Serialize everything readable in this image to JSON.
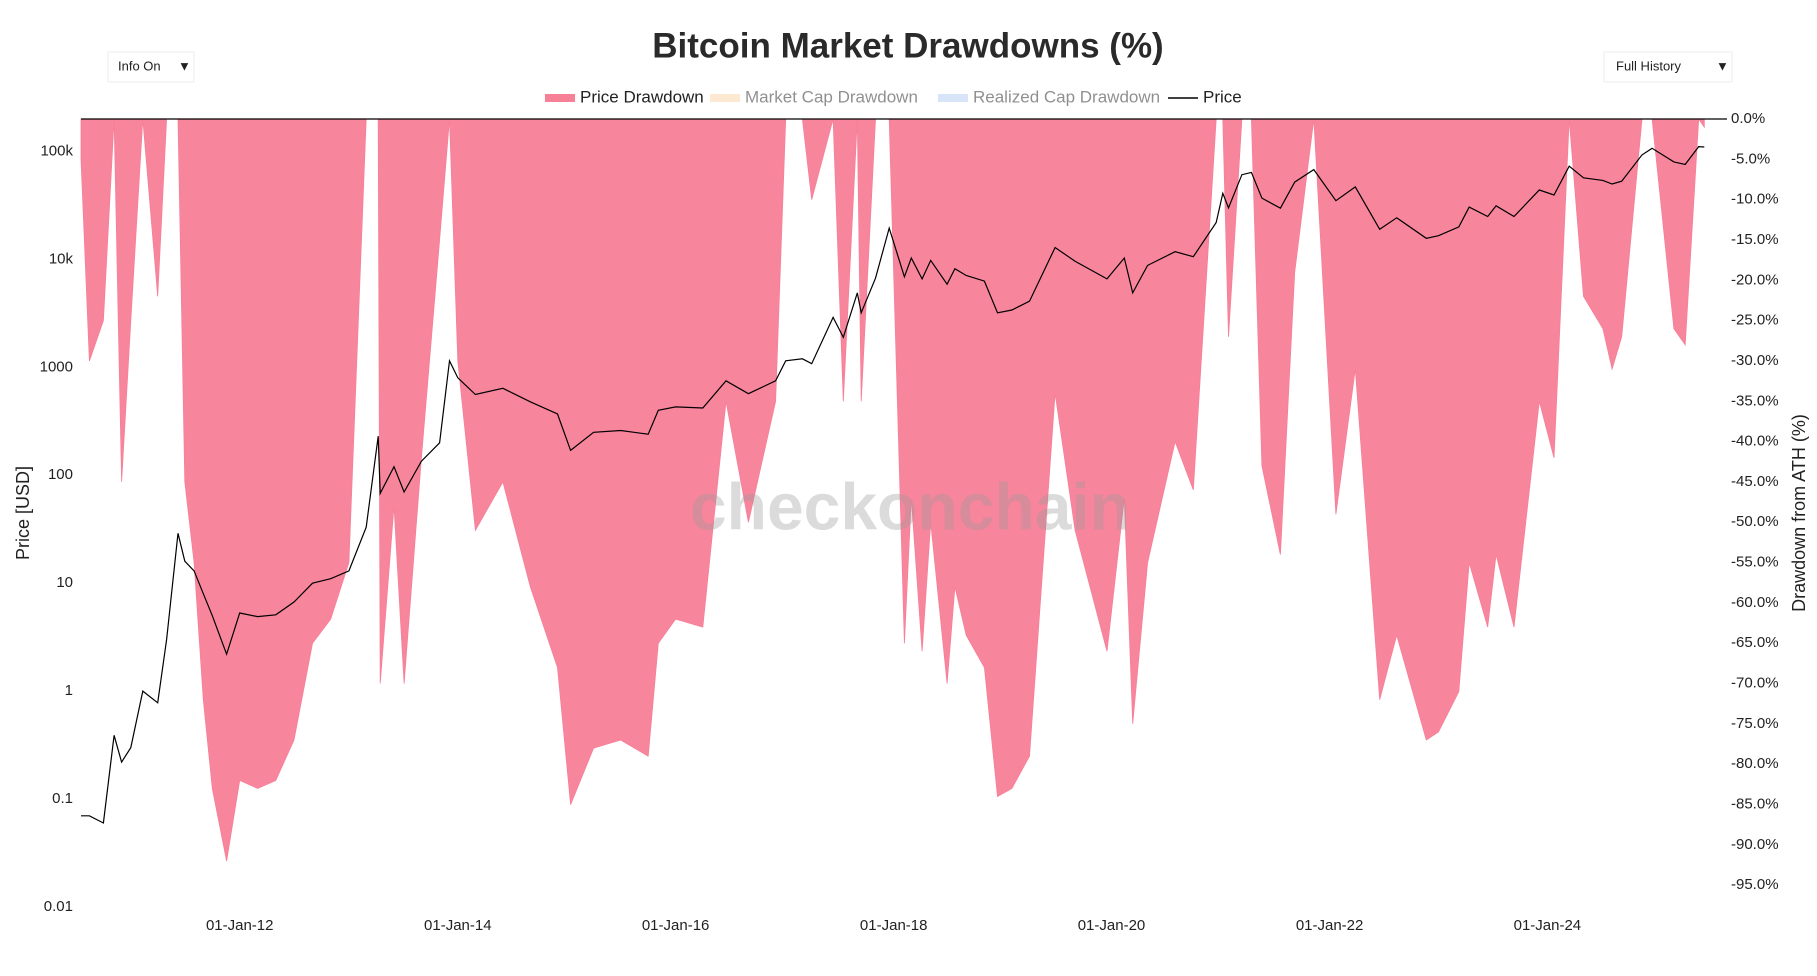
{
  "chart_data": {
    "type": "area",
    "title": "Bitcoin Market Drawdowns (%)",
    "controls": [
      {
        "label": "Info On",
        "arrow": "▼"
      },
      {
        "label": "Full History",
        "arrow": "▼"
      }
    ],
    "watermark": "checkonchain",
    "ylabel": "Price [USD]",
    "y2label": "Drawdown from ATH (%)",
    "yscale": "log",
    "xlim": [
      "2010-07-18",
      "2025-08-25"
    ],
    "xticks": [
      {
        "value": "2012-01-01",
        "label": "01-Jan-12"
      },
      {
        "value": "2014-01-01",
        "label": "01-Jan-14"
      },
      {
        "value": "2016-01-01",
        "label": "01-Jan-16"
      },
      {
        "value": "2018-01-01",
        "label": "01-Jan-18"
      },
      {
        "value": "2020-01-01",
        "label": "01-Jan-20"
      },
      {
        "value": "2022-01-01",
        "label": "01-Jan-22"
      },
      {
        "value": "2024-01-01",
        "label": "01-Jan-24"
      }
    ],
    "ylim": [
      0.01,
      200000
    ],
    "yticks": [
      0.01,
      0.1,
      1,
      10,
      100,
      1000,
      {
        "value": 10000,
        "label": "10k"
      },
      {
        "value": 100000,
        "label": "100k"
      }
    ],
    "y2lim": [
      -97.7,
      0
    ],
    "y2ticks": [
      {
        "value": 0,
        "label": "0.0%"
      },
      {
        "value": -5,
        "label": "-5.0%"
      },
      {
        "value": -10,
        "label": "-10.0%"
      },
      {
        "value": -15,
        "label": "-15.0%"
      },
      {
        "value": -20,
        "label": "-20.0%"
      },
      {
        "value": -25,
        "label": "-25.0%"
      },
      {
        "value": -30,
        "label": "-30.0%"
      },
      {
        "value": -35,
        "label": "-35.0%"
      },
      {
        "value": -40,
        "label": "-40.0%"
      },
      {
        "value": -45,
        "label": "-45.0%"
      },
      {
        "value": -50,
        "label": "-50.0%"
      },
      {
        "value": -55,
        "label": "-55.0%"
      },
      {
        "value": -60,
        "label": "-60.0%"
      },
      {
        "value": -65,
        "label": "-65.0%"
      },
      {
        "value": -70,
        "label": "-70.0%"
      },
      {
        "value": -75,
        "label": "-75.0%"
      },
      {
        "value": -80,
        "label": "-80.0%"
      },
      {
        "value": -85,
        "label": "-85.0%"
      },
      {
        "value": -90,
        "label": "-90.0%"
      },
      {
        "value": -95,
        "label": "-95.0%"
      }
    ],
    "x": [
      "2010-07-18",
      "2010-08-15",
      "2010-10-01",
      "2010-11-06",
      "2010-12-01",
      "2011-01-01",
      "2011-02-10",
      "2011-04-01",
      "2011-05-01",
      "2011-06-08",
      "2011-07-01",
      "2011-08-01",
      "2011-09-01",
      "2011-10-01",
      "2011-11-18",
      "2012-01-01",
      "2012-03-01",
      "2012-05-01",
      "2012-07-01",
      "2012-09-01",
      "2012-11-01",
      "2013-01-01",
      "2013-02-28",
      "2013-04-09",
      "2013-04-16",
      "2013-06-01",
      "2013-07-05",
      "2013-09-01",
      "2013-11-01",
      "2013-12-04",
      "2014-01-01",
      "2014-03-01",
      "2014-06-01",
      "2014-09-01",
      "2014-12-01",
      "2015-01-14",
      "2015-04-01",
      "2015-07-01",
      "2015-10-01",
      "2015-11-04",
      "2016-01-01",
      "2016-04-01",
      "2016-06-18",
      "2016-09-01",
      "2016-12-01",
      "2017-01-04",
      "2017-03-01",
      "2017-04-01",
      "2017-06-12",
      "2017-07-16",
      "2017-09-01",
      "2017-09-14",
      "2017-11-01",
      "2017-12-17",
      "2018-02-06",
      "2018-03-01",
      "2018-04-06",
      "2018-05-05",
      "2018-06-29",
      "2018-07-25",
      "2018-09-01",
      "2018-11-01",
      "2018-12-15",
      "2019-02-01",
      "2019-04-01",
      "2019-06-26",
      "2019-09-01",
      "2019-12-17",
      "2020-02-13",
      "2020-03-12",
      "2020-05-01",
      "2020-08-01",
      "2020-10-01",
      "2020-12-17",
      "2021-01-08",
      "2021-01-27",
      "2021-03-13",
      "2021-04-14",
      "2021-05-19",
      "2021-07-20",
      "2021-09-06",
      "2021-11-09",
      "2022-01-22",
      "2022-03-28",
      "2022-06-18",
      "2022-08-14",
      "2022-11-21",
      "2023-01-01",
      "2023-03-10",
      "2023-04-14",
      "2023-06-15",
      "2023-07-13",
      "2023-09-11",
      "2023-12-05",
      "2024-01-23",
      "2024-03-14",
      "2024-05-01",
      "2024-07-05",
      "2024-08-05",
      "2024-09-06",
      "2024-11-13",
      "2024-12-17",
      "2025-02-28",
      "2025-04-07",
      "2025-05-22",
      "2025-06-10"
    ],
    "series": [
      {
        "name": "Price Drawdown",
        "color": "#f77f98",
        "axis": "y2",
        "type": "area",
        "visible": true,
        "values": [
          -5,
          -30,
          -25,
          0,
          -45,
          -25,
          0,
          -22,
          0,
          0,
          -45,
          -55,
          -72,
          -83,
          -92,
          -82,
          -83,
          -82,
          -77,
          -65,
          -62,
          -55,
          0,
          0,
          -70,
          -48,
          -70,
          -42,
          -15,
          0,
          -30,
          -51,
          -45,
          -58,
          -68,
          -85,
          -78,
          -77,
          -79,
          -65,
          -62,
          -63,
          -35,
          -50,
          -35,
          0,
          0,
          -10,
          0,
          -35,
          0,
          -35,
          0,
          0,
          -65,
          -47,
          -66,
          -50,
          -70,
          -58,
          -64,
          -68,
          -84,
          -83,
          -79,
          -34,
          -51,
          -66,
          -47,
          -75,
          -55,
          -40,
          -46,
          0,
          0,
          -27,
          0,
          0,
          -43,
          -54,
          -19,
          0,
          -49,
          -31,
          -72,
          -64,
          -77,
          -76,
          -71,
          -55,
          -63,
          -54,
          -63,
          -35,
          -42,
          0,
          -22,
          -26,
          -31,
          -27,
          0,
          0,
          -26,
          -28,
          0,
          -1
        ]
      },
      {
        "name": "Market Cap Drawdown",
        "color": "#fcd5a5",
        "axis": "y2",
        "type": "area",
        "visible": false
      },
      {
        "name": "Realized Cap Drawdown",
        "color": "#b3cdf5",
        "axis": "y2",
        "type": "area",
        "visible": false
      },
      {
        "name": "Price",
        "color": "#000000",
        "type": "line",
        "visible": true,
        "values": [
          0.07,
          0.07,
          0.06,
          0.39,
          0.22,
          0.3,
          1.0,
          0.78,
          3.0,
          29,
          16,
          13,
          8,
          5,
          2.2,
          5.3,
          4.9,
          5.1,
          6.7,
          10,
          11,
          13,
          33,
          230,
          68,
          120,
          70,
          135,
          200,
          1150,
          800,
          560,
          640,
          480,
          370,
          170,
          250,
          260,
          240,
          400,
          430,
          420,
          750,
          570,
          750,
          1150,
          1200,
          1080,
          2900,
          1900,
          4900,
          3200,
          6700,
          19500,
          6900,
          10300,
          6600,
          9800,
          5900,
          8200,
          7100,
          6300,
          3200,
          3400,
          4100,
          12900,
          9600,
          6600,
          10300,
          4900,
          8800,
          11800,
          10600,
          22000,
          41000,
          30000,
          61000,
          64000,
          37000,
          29800,
          52000,
          68000,
          35000,
          47000,
          19000,
          24300,
          15700,
          16600,
          20000,
          30500,
          25000,
          31400,
          25000,
          44000,
          39500,
          73000,
          57000,
          54000,
          50000,
          53000,
          93000,
          107000,
          80000,
          76000,
          111000,
          110000
        ]
      }
    ]
  }
}
